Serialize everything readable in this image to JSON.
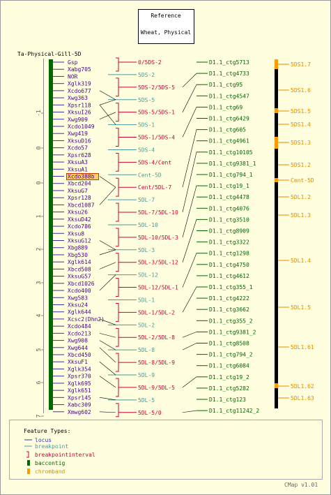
{
  "reference": {
    "title": "Reference",
    "subtitle": "Wheat, Physical"
  },
  "map_title": "Ta-Physical-Gill-5D",
  "scale_ticks": [
    "-1",
    "0",
    "0",
    "1",
    "2",
    "3",
    "4",
    "5",
    "6",
    "7"
  ],
  "loci": [
    "Gsp",
    "Xabg705",
    "NOR",
    "Xglk319",
    "Xcdo677",
    "Xwg363",
    "Xpsr118",
    "XksuI26",
    "Xwg909",
    "Xcdo1049",
    "Xwg419",
    "XksuD16",
    "Xcdo57",
    "Xpsr628",
    "XksuA3",
    "XksuA1",
    "Xcdo388b",
    "Xbcd204",
    "XksuG7",
    "Xpsr128",
    "Xbcd1087",
    "Xksu26",
    "XksuD42",
    "Xcdo786",
    "Xksu8",
    "XksuG12",
    "Xbg889",
    "Xbg530",
    "Xglk614",
    "Xbcd508",
    "XksuG57",
    "Xbcd1026",
    "Xcdo400",
    "Xwg583",
    "Xksu24",
    "Xglk644",
    "Xcsc2(Dhn2)",
    "Xcdo484",
    "Xcdo213",
    "Xwg908",
    "Xwg644",
    "Xbcd450",
    "XksuF1",
    "Xglk354",
    "Xpsr370",
    "Xglk695",
    "Xglk651",
    "Xpsr145",
    "Xabc309",
    "Xmwg602"
  ],
  "highlighted_locus": "Xcdo388b",
  "intervals": [
    {
      "label": "0/5DS-2",
      "color": "#cc0033"
    },
    {
      "label": "5DS-2",
      "color": "#4a9999"
    },
    {
      "label": "5DS-2/5DS-5",
      "color": "#cc0033"
    },
    {
      "label": "5DS-5",
      "color": "#4a9999"
    },
    {
      "label": "5DS-5/5DS-1",
      "color": "#cc0033"
    },
    {
      "label": "5DS-1",
      "color": "#4a9999"
    },
    {
      "label": "5DS-1/5DS-4",
      "color": "#cc0033"
    },
    {
      "label": "5DS-4",
      "color": "#4a9999"
    },
    {
      "label": "5DS-4/Cent",
      "color": "#cc0033"
    },
    {
      "label": "Cent-5D",
      "color": "#4a9999"
    },
    {
      "label": "Cent/5DL-7",
      "color": "#cc0033"
    },
    {
      "label": "5DL-7",
      "color": "#4a9999"
    },
    {
      "label": "5DL-7/5DL-10",
      "color": "#cc0033"
    },
    {
      "label": "5DL-10",
      "color": "#4a9999"
    },
    {
      "label": "5DL-10/5DL-3",
      "color": "#cc0033"
    },
    {
      "label": "5DL-3",
      "color": "#4a9999"
    },
    {
      "label": "5DL-3/5DL-12",
      "color": "#cc0033"
    },
    {
      "label": "5DL-12",
      "color": "#4a9999"
    },
    {
      "label": "5DL-12/5DL-1",
      "color": "#cc0033"
    },
    {
      "label": "5DL-1",
      "color": "#4a9999"
    },
    {
      "label": "5DL-1/5DL-2",
      "color": "#cc0033"
    },
    {
      "label": "5DL-2",
      "color": "#4a9999"
    },
    {
      "label": "5DL-2/5DL-8",
      "color": "#cc0033"
    },
    {
      "label": "5DL-8",
      "color": "#4a9999"
    },
    {
      "label": "5DL-8/5DL-9",
      "color": "#cc0033"
    },
    {
      "label": "5DL-9",
      "color": "#4a9999"
    },
    {
      "label": "5DL-9/5DL-5",
      "color": "#cc0033"
    },
    {
      "label": "5DL-5",
      "color": "#4a9999"
    },
    {
      "label": "5DL-5/0",
      "color": "#cc0033"
    }
  ],
  "contigs": [
    "D1.1_ctg5713",
    "D1.1_ctg4733",
    "D1.1_ctg95",
    "D1.1_ctg4547",
    "D1.1_ctg69",
    "D1.1_ctg6429",
    "D1.1_ctg605",
    "D1.1_ctg4961",
    "D1.1_ctg10105",
    "D1.1_ctg9381_1",
    "D1.1_ctg794_1",
    "D1.1_ctg19_1",
    "D1.1_ctg4478",
    "D1.1_ctg4076",
    "D1.1_ctg3510",
    "D1.1_ctg8909",
    "D1.1_ctg3322",
    "D1.1_ctg1298",
    "D1.1_ctg4750",
    "D1.1_ctg4612",
    "D1.1_ctg355_1",
    "D1.1_ctg4222",
    "D1.1_ctg3662",
    "D1.1_ctg355_2",
    "D1.1_ctg9381_2",
    "D1.1_ctg8508",
    "D1.1_ctg794_2",
    "D1.1_ctg6084",
    "D1.1_ctg19_2",
    "D1.1_ctg5282",
    "D1.1_ctg123",
    "D1.1_ctg11242_2"
  ],
  "chrombands": [
    "5DS1.7",
    "5DS1.6",
    "5DS1.5",
    "5DS1.4",
    "5DS1.3",
    "5DS1.2",
    "Cent-5D",
    "5DL1.2",
    "5DL1.3",
    "5DL1.4",
    "5DL1.5",
    "5DL1.61",
    "5DL1.62",
    "5DL1.63"
  ],
  "legend": {
    "title": "Feature Types:",
    "items": [
      {
        "label": "locus",
        "icon": "line-icon",
        "color": "#3333aa"
      },
      {
        "label": "breakpoint",
        "icon": "line-icon",
        "color": "#4a9999"
      },
      {
        "label": "breakpointinterval",
        "icon": "bracket-icon",
        "color": "#cc0033"
      },
      {
        "label": "baccontig",
        "icon": "box-icon",
        "color": "#006600"
      },
      {
        "label": "chromband",
        "icon": "box-icon",
        "color": "#ff9900"
      }
    ]
  },
  "version": "CMap v1.01",
  "colors": {
    "background": "#ffffe0",
    "locus": "#440088",
    "contig": "#006600",
    "chromband": "#e08a00"
  }
}
